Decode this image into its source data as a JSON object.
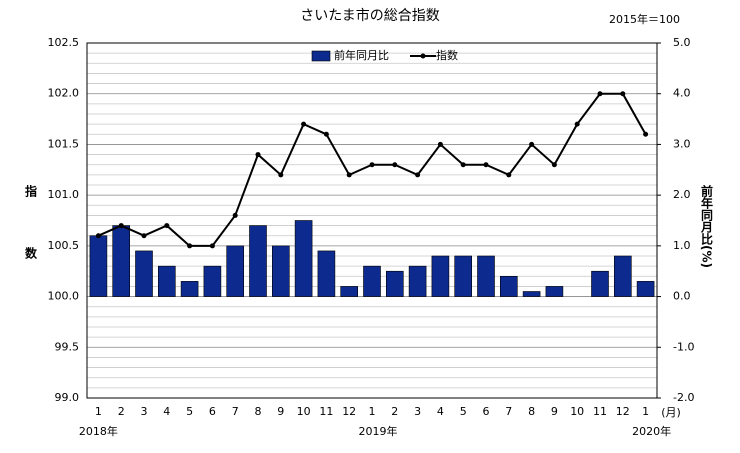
{
  "chart_data": {
    "type": "bar-line",
    "title": "さいたま市の総合指数",
    "subtitle": "2015年＝100",
    "y_label": "指数",
    "y2_label": "前年同月比(%)",
    "x_unit": "(月)",
    "years": [
      "2018年",
      "2019年",
      "2020年"
    ],
    "categories": [
      "1",
      "2",
      "3",
      "4",
      "5",
      "6",
      "7",
      "8",
      "9",
      "10",
      "11",
      "12",
      "1",
      "2",
      "3",
      "4",
      "5",
      "6",
      "7",
      "8",
      "9",
      "10",
      "11",
      "12",
      "1"
    ],
    "series": [
      {
        "name": "前年同月比",
        "kind": "bar",
        "axis": "y2",
        "color": "#0d2a8f",
        "values": [
          1.2,
          1.4,
          0.9,
          0.6,
          0.3,
          0.6,
          1.0,
          1.4,
          1.0,
          1.5,
          0.9,
          0.2,
          0.6,
          0.5,
          0.6,
          0.8,
          0.8,
          0.8,
          0.4,
          0.1,
          0.2,
          0,
          0.5,
          0.8,
          0.3
        ]
      },
      {
        "name": "指数",
        "kind": "line",
        "color": "#000000",
        "values": [
          100.6,
          100.7,
          100.6,
          100.7,
          100.5,
          100.5,
          100.8,
          101.4,
          101.2,
          101.7,
          101.6,
          101.2,
          101.3,
          101.3,
          101.2,
          101.5,
          101.3,
          101.3,
          101.2,
          101.5,
          101.3,
          101.7,
          102.0,
          102.0,
          101.6
        ]
      }
    ],
    "ylim": [
      99,
      102.5
    ],
    "yticks": [
      {
        "value": 99,
        "label": "99.0"
      },
      99.5,
      {
        "value": 100,
        "label": "100.0"
      },
      100.5,
      {
        "value": 101,
        "label": "101.0"
      },
      101.5,
      {
        "value": 102,
        "label": "102.0"
      },
      102.5
    ],
    "y2lim": [
      -2,
      5
    ],
    "y2ticks": [
      {
        "value": -2,
        "label": "-2.0"
      },
      {
        "value": -1,
        "label": "-1.0"
      },
      {
        "value": 0,
        "label": "0.0"
      },
      {
        "value": 1,
        "label": "1.0"
      },
      {
        "value": 2,
        "label": "2.0"
      },
      {
        "value": 3,
        "label": "3.0"
      },
      {
        "value": 4,
        "label": "4.0"
      },
      {
        "value": 5,
        "label": "5.0"
      }
    ],
    "grid": true,
    "legend": "top"
  }
}
